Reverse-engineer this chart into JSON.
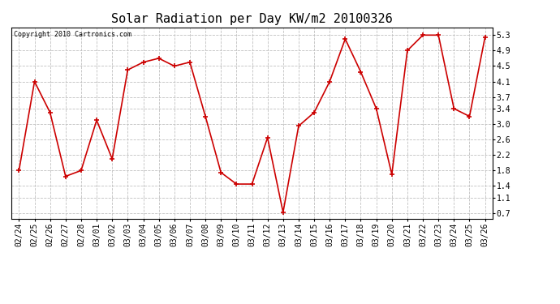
{
  "title": "Solar Radiation per Day KW/m2 20100326",
  "copyright": "Copyright 2010 Cartronics.com",
  "dates": [
    "02/24",
    "02/25",
    "02/26",
    "02/27",
    "02/28",
    "03/01",
    "03/02",
    "03/03",
    "03/04",
    "03/05",
    "03/06",
    "03/07",
    "03/08",
    "03/09",
    "03/10",
    "03/11",
    "03/12",
    "03/13",
    "03/14",
    "03/15",
    "03/16",
    "03/17",
    "03/18",
    "03/19",
    "03/20",
    "03/21",
    "03/22",
    "03/23",
    "03/24",
    "03/25",
    "03/26"
  ],
  "values": [
    1.8,
    4.1,
    3.3,
    1.65,
    1.8,
    3.1,
    2.1,
    4.4,
    4.6,
    4.7,
    4.5,
    4.6,
    3.2,
    1.75,
    1.45,
    1.45,
    2.65,
    0.72,
    2.95,
    3.3,
    4.1,
    5.2,
    4.35,
    3.4,
    1.7,
    4.9,
    5.3,
    5.3,
    3.4,
    3.2,
    5.25
  ],
  "yticks": [
    0.7,
    1.1,
    1.4,
    1.8,
    2.2,
    2.6,
    3.0,
    3.4,
    3.7,
    4.1,
    4.5,
    4.9,
    5.3
  ],
  "ylim": [
    0.55,
    5.5
  ],
  "line_color": "#cc0000",
  "marker_color": "#cc0000",
  "bg_color": "#ffffff",
  "plot_bg_color": "#ffffff",
  "grid_color": "#c0c0c0",
  "title_fontsize": 11,
  "copyright_fontsize": 6,
  "tick_fontsize": 7,
  "ytick_fontsize": 7
}
